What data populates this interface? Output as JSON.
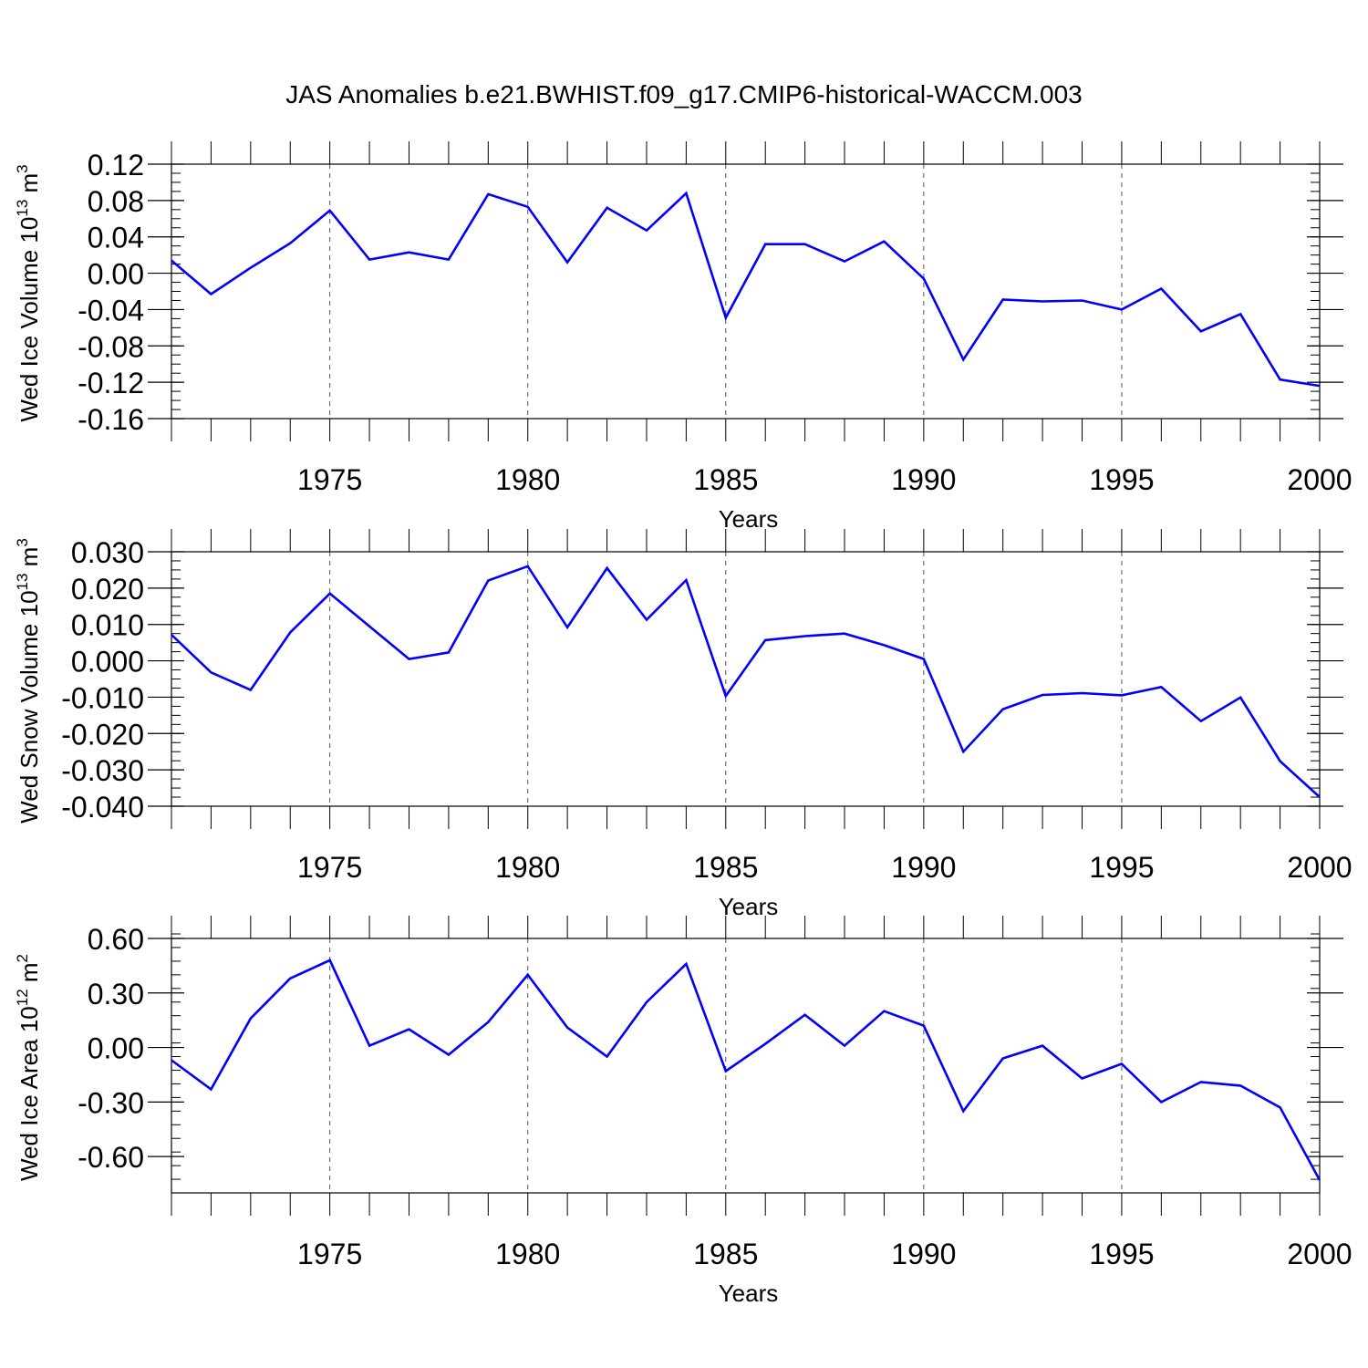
{
  "title": "JAS Anomalies b.e21.BWHIST.f09_g17.CMIP6-historical-WACCM.003",
  "line_color": "#0000ff",
  "grid_color": "#555555",
  "chart_data": [
    {
      "type": "line",
      "ylabel": {
        "main": "Wed Ice Volume 10",
        "exp": "13",
        "unit": " m",
        "unit_exp": "3"
      },
      "xlabel": "Years",
      "xlim": [
        1971,
        2000
      ],
      "ylim": [
        -0.16,
        0.12
      ],
      "yticks": [
        "0.12",
        "0.08",
        "0.04",
        "0.00",
        "-0.04",
        "-0.08",
        "-0.12",
        "-0.16"
      ],
      "yticks_values": [
        0.12,
        0.08,
        0.04,
        0.0,
        -0.04,
        -0.08,
        -0.12,
        -0.16
      ],
      "xticks": [
        "1975",
        "1980",
        "1985",
        "1990",
        "1995",
        "2000"
      ],
      "xticks_values": [
        1975,
        1980,
        1985,
        1990,
        1995,
        2000
      ],
      "grid": "vertical dashed at labeled years",
      "x": [
        1971,
        1972,
        1973,
        1974,
        1975,
        1976,
        1977,
        1978,
        1979,
        1980,
        1981,
        1982,
        1983,
        1984,
        1985,
        1986,
        1987,
        1988,
        1989,
        1990,
        1991,
        1992,
        1993,
        1994,
        1995,
        1996,
        1997,
        1998,
        1999,
        2000
      ],
      "y": [
        0.014,
        -0.023,
        0.006,
        0.033,
        0.069,
        0.015,
        0.023,
        0.015,
        0.087,
        0.073,
        0.012,
        0.072,
        0.047,
        0.088,
        -0.049,
        0.032,
        0.032,
        0.013,
        0.035,
        -0.006,
        -0.095,
        -0.029,
        -0.031,
        -0.03,
        -0.04,
        -0.017,
        -0.064,
        -0.045,
        -0.117,
        -0.124
      ]
    },
    {
      "type": "line",
      "ylabel": {
        "main": "Wed Snow Volume 10",
        "exp": "13",
        "unit": " m",
        "unit_exp": "3"
      },
      "xlabel": "Years",
      "xlim": [
        1971,
        2000
      ],
      "ylim": [
        -0.04,
        0.03
      ],
      "yticks": [
        "0.030",
        "0.020",
        "0.010",
        "0.000",
        "-0.010",
        "-0.020",
        "-0.030",
        "-0.040"
      ],
      "yticks_values": [
        0.03,
        0.02,
        0.01,
        0.0,
        -0.01,
        -0.02,
        -0.03,
        -0.04
      ],
      "xticks": [
        "1975",
        "1980",
        "1985",
        "1990",
        "1995",
        "2000"
      ],
      "xticks_values": [
        1975,
        1980,
        1985,
        1990,
        1995,
        2000
      ],
      "grid": "vertical dashed at labeled years",
      "x": [
        1971,
        1972,
        1973,
        1974,
        1975,
        1976,
        1977,
        1978,
        1979,
        1980,
        1981,
        1982,
        1983,
        1984,
        1985,
        1986,
        1987,
        1988,
        1989,
        1990,
        1991,
        1992,
        1993,
        1994,
        1995,
        1996,
        1997,
        1998,
        1999,
        2000
      ],
      "y": [
        0.0072,
        -0.0032,
        -0.008,
        0.0078,
        0.0185,
        0.0095,
        0.0005,
        0.0023,
        0.0221,
        0.026,
        0.0092,
        0.0255,
        0.0113,
        0.0222,
        -0.0097,
        0.0057,
        0.0068,
        0.0075,
        0.0043,
        0.0005,
        -0.025,
        -0.0133,
        -0.0094,
        -0.0089,
        -0.0095,
        -0.0072,
        -0.0166,
        -0.0101,
        -0.0276,
        -0.0375
      ]
    },
    {
      "type": "line",
      "ylabel": {
        "main": "Wed Ice Area 10",
        "exp": "12",
        "unit": " m",
        "unit_exp": "2"
      },
      "xlabel": "Years",
      "xlim": [
        1971,
        2000
      ],
      "ylim": [
        -0.8,
        0.6
      ],
      "yticks": [
        "0.60",
        "0.30",
        "0.00",
        "-0.30",
        "-0.60"
      ],
      "yticks_values": [
        0.6,
        0.3,
        0.0,
        -0.3,
        -0.6
      ],
      "xticks": [
        "1975",
        "1980",
        "1985",
        "1990",
        "1995",
        "2000"
      ],
      "xticks_values": [
        1975,
        1980,
        1985,
        1990,
        1995,
        2000
      ],
      "grid": "vertical dashed at labeled years",
      "x": [
        1971,
        1972,
        1973,
        1974,
        1975,
        1976,
        1977,
        1978,
        1979,
        1980,
        1981,
        1982,
        1983,
        1984,
        1985,
        1986,
        1987,
        1988,
        1989,
        1990,
        1991,
        1992,
        1993,
        1994,
        1995,
        1996,
        1997,
        1998,
        1999,
        2000
      ],
      "y": [
        -0.07,
        -0.23,
        0.16,
        0.38,
        0.48,
        0.01,
        0.1,
        -0.04,
        0.14,
        0.4,
        0.11,
        -0.05,
        0.25,
        0.46,
        -0.13,
        0.02,
        0.18,
        0.01,
        0.2,
        0.12,
        -0.35,
        -0.06,
        0.01,
        -0.17,
        -0.09,
        -0.3,
        -0.19,
        -0.21,
        -0.33,
        -0.73
      ]
    }
  ]
}
